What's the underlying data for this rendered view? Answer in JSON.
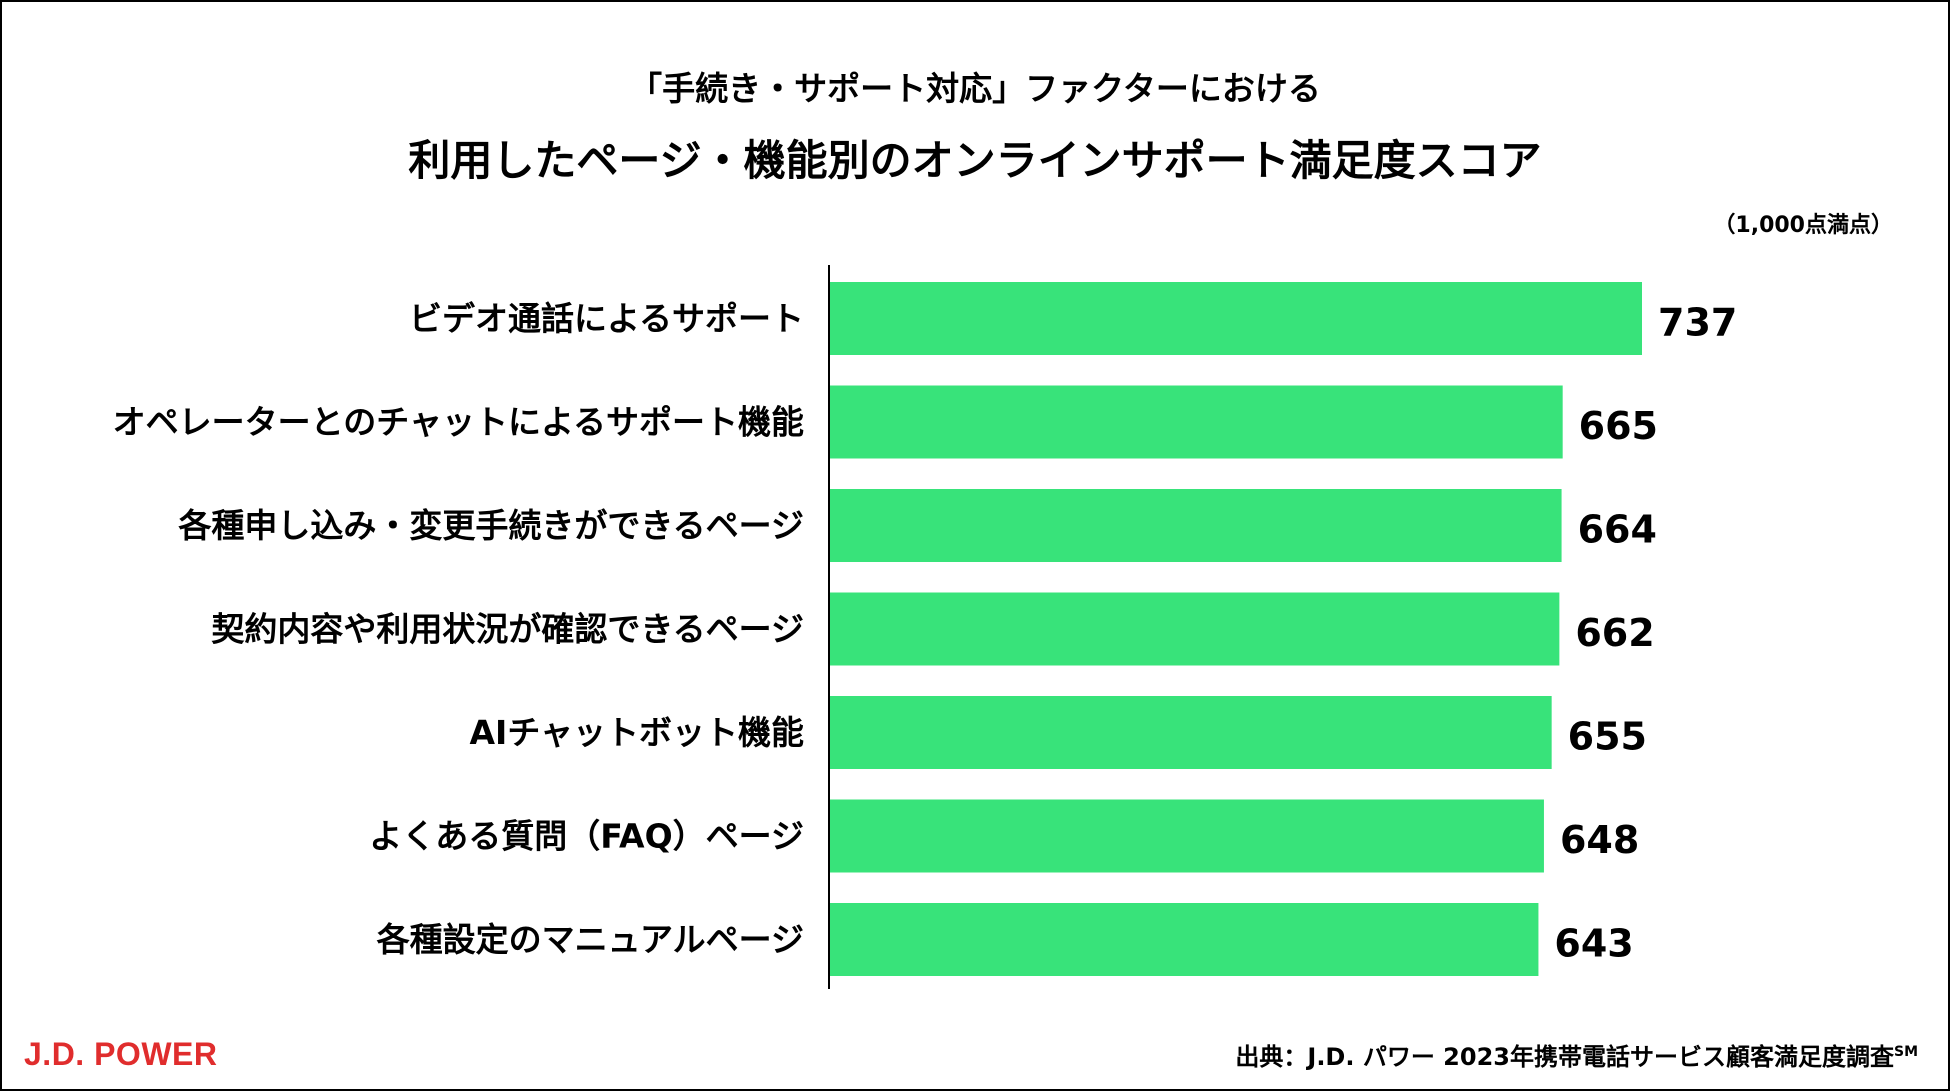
{
  "header": {
    "subtitle": "「手続き・サポート対応」ファクターにおける",
    "title": "利用したページ・機能別のオンラインサポート満足度スコア",
    "unit": "（1,000点満点）"
  },
  "footer": {
    "logo": "J.D. POWER",
    "source": "出典：J.D. パワー 2023年携帯電話サービス顧客満足度調査",
    "source_mark": "SM"
  },
  "colors": {
    "bar": "#38e37a",
    "logo": "#e02d2d"
  },
  "chart_data": {
    "type": "bar",
    "orientation": "horizontal",
    "title": "利用したページ・機能別のオンラインサポート満足度スコア",
    "subtitle": "「手続き・サポート対応」ファクターにおける",
    "unit_note": "（1,000点満点）",
    "categories": [
      "ビデオ通話によるサポート",
      "オペレーターとのチャットによるサポート機能",
      "各種申し込み・変更手続きができるページ",
      "契約内容や利用状況が確認できるページ",
      "AIチャットボット機能",
      "よくある質問（FAQ）ページ",
      "各種設定のマニュアルページ"
    ],
    "values": [
      737,
      665,
      664,
      662,
      655,
      648,
      643
    ],
    "xlim": [
      0,
      737
    ],
    "grid": false,
    "legend": "none"
  }
}
